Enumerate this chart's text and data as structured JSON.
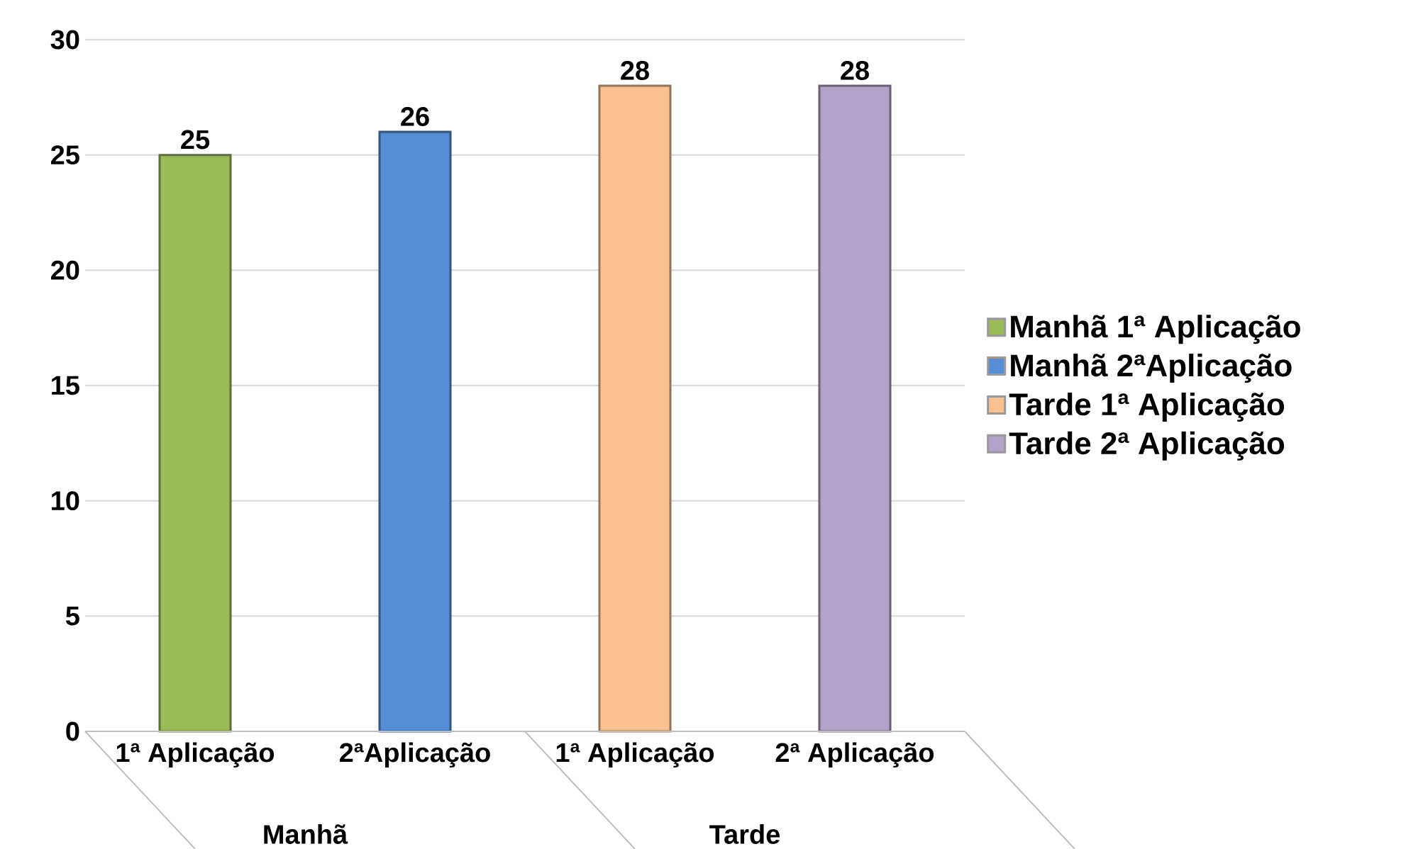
{
  "chart_data": {
    "type": "bar",
    "categories": [
      "1ª Aplicação",
      "2ªAplicação",
      "1ª Aplicação",
      "2ª Aplicação"
    ],
    "annotations": [
      "Manhã",
      "Tarde"
    ],
    "series": [
      {
        "name": "Manhã 1ª Aplicação",
        "color": "#9bbb59",
        "values": [
          25,
          null,
          null,
          null
        ]
      },
      {
        "name": "Manhã 2ªAplicação",
        "color": "#558ed5",
        "values": [
          null,
          26,
          null,
          null
        ]
      },
      {
        "name": "Tarde 1ª Aplicação",
        "color": "#fac090",
        "values": [
          null,
          null,
          28,
          null
        ]
      },
      {
        "name": "Tarde 2ª Aplicação",
        "color": "#b3a2c7",
        "values": [
          null,
          null,
          null,
          28
        ]
      }
    ],
    "ylim": [
      0,
      30
    ],
    "yticks": [
      0,
      5,
      10,
      15,
      20,
      25,
      30
    ],
    "grid": "y",
    "legend": "right",
    "data_labels": true
  }
}
